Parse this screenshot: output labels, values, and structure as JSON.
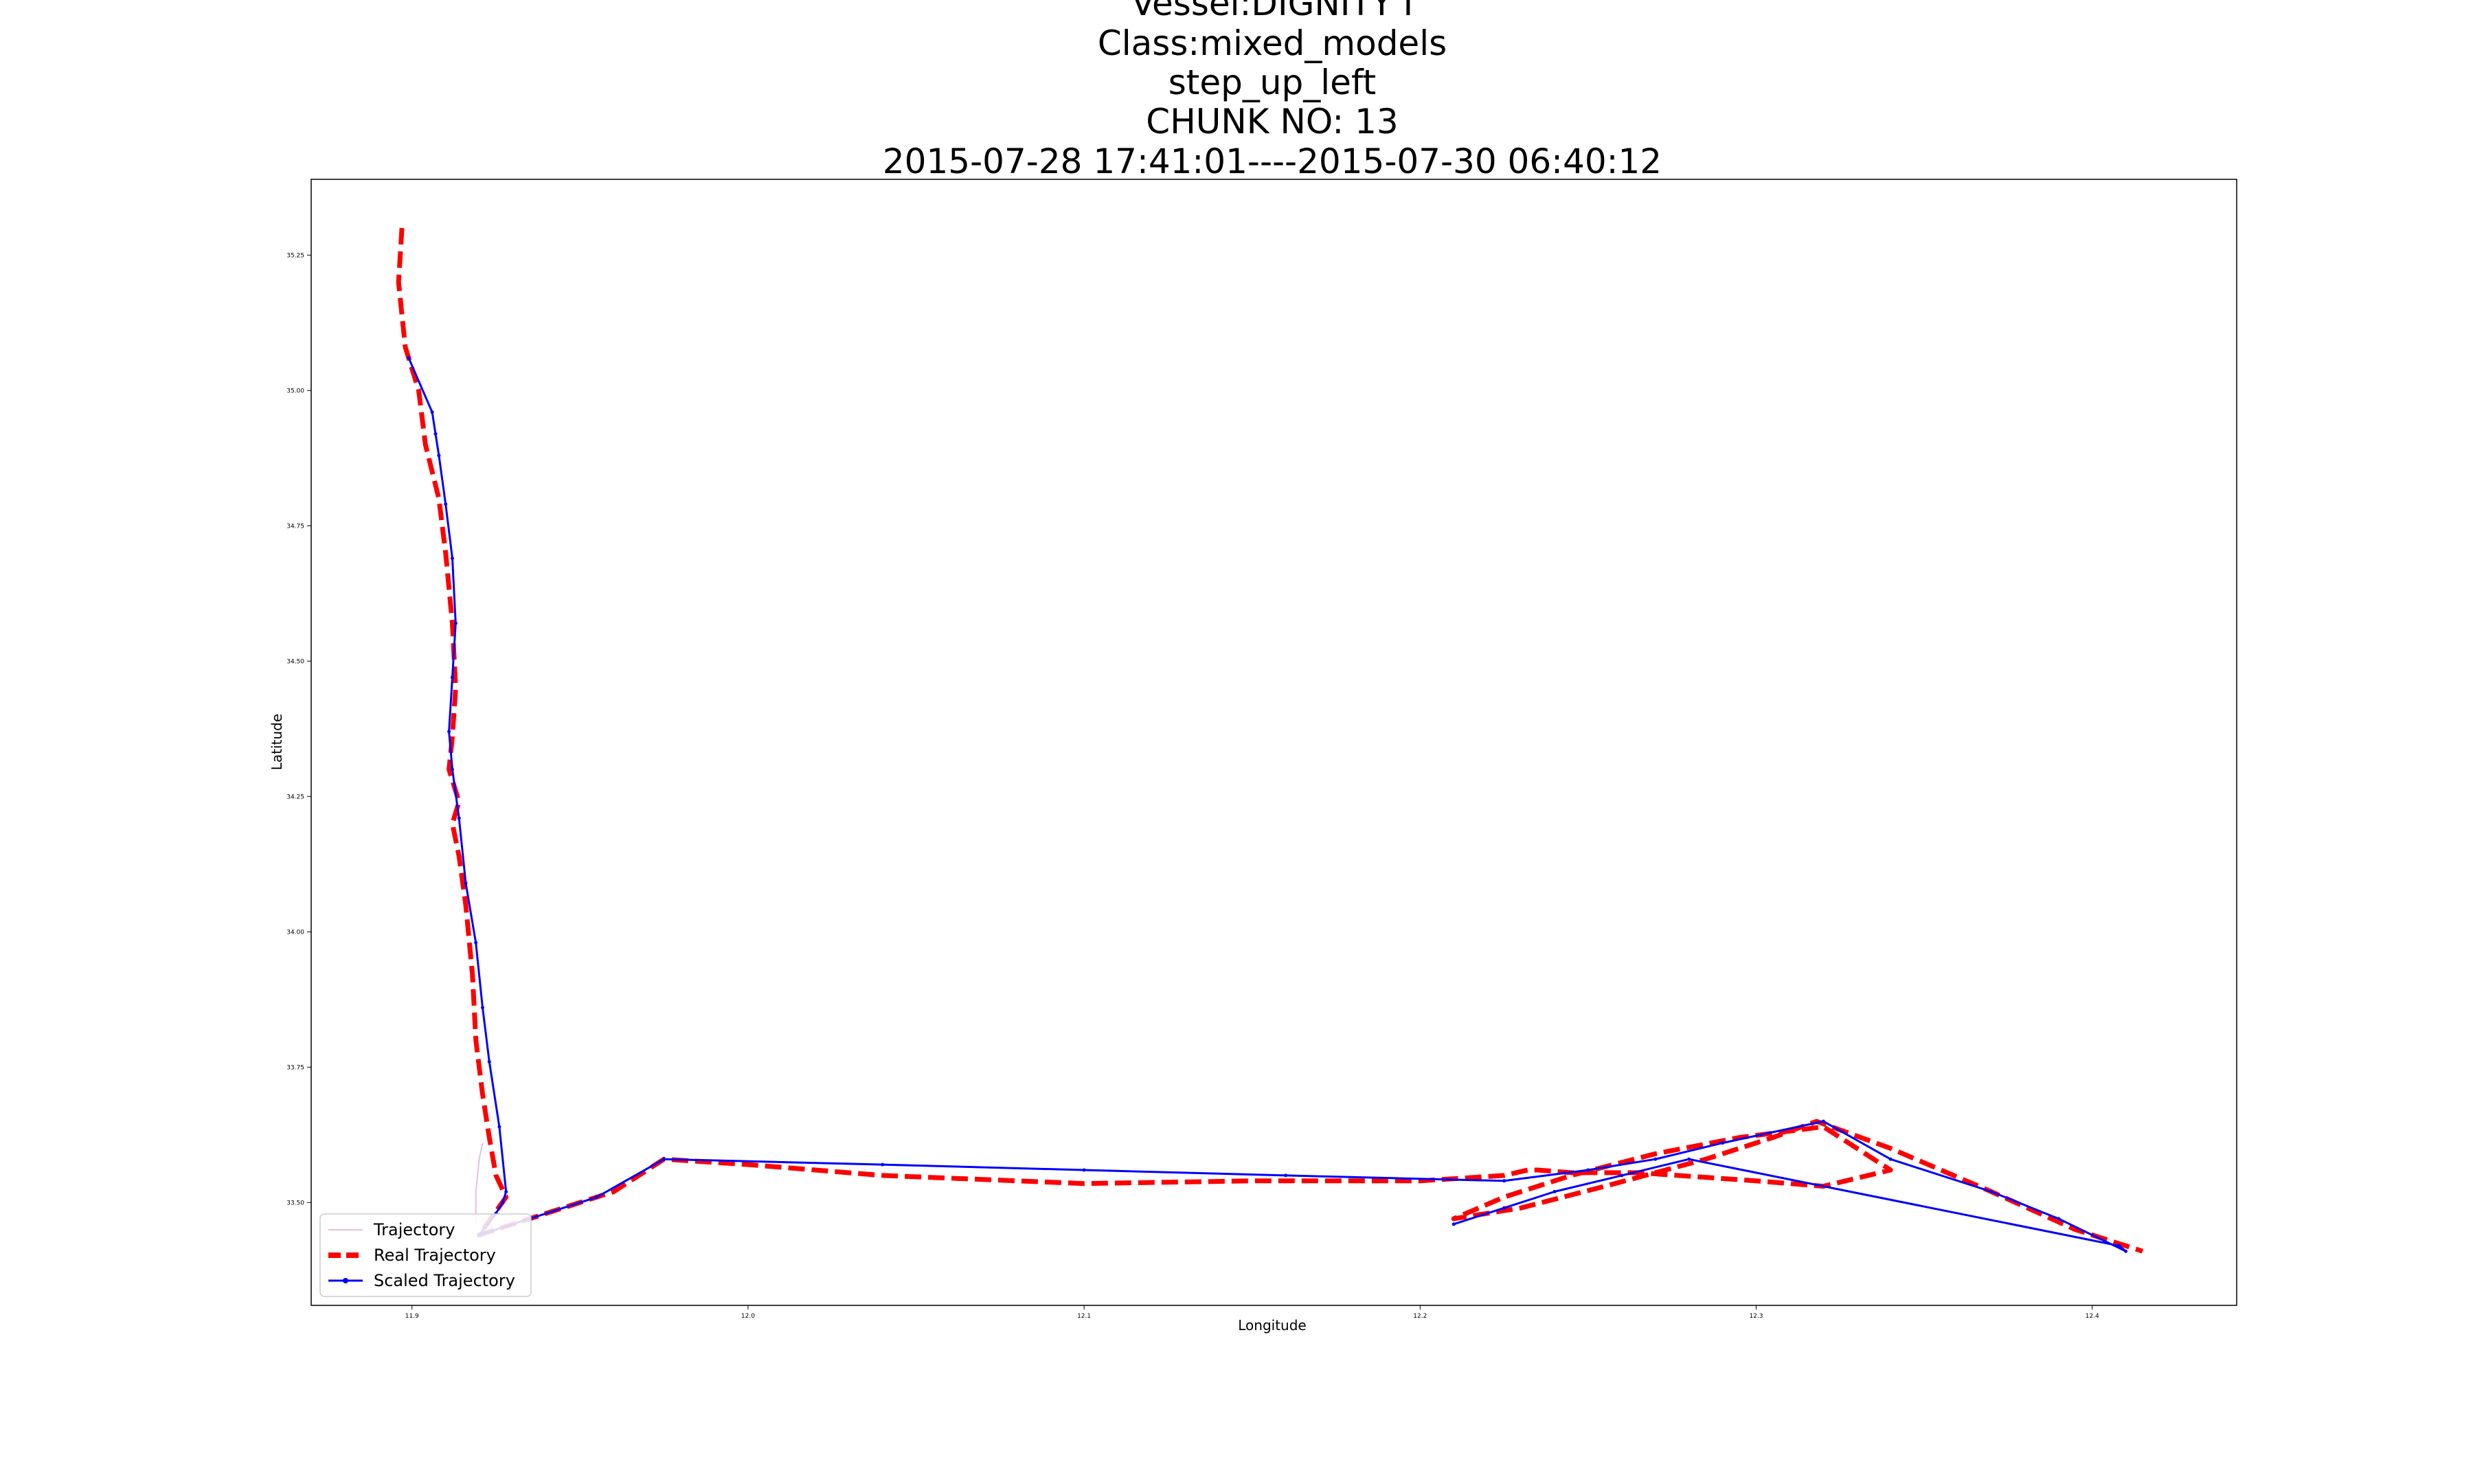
{
  "chart_data": {
    "type": "line",
    "title_lines": [
      "Vessel:DIGNITY I",
      "Class:mixed_models",
      "step_up_left",
      "CHUNK NO: 13",
      "2015-07-28 17:41:01----2015-07-30 06:40:12"
    ],
    "xlabel": "Longitude",
    "ylabel": "Latitude",
    "xlim": [
      11.87,
      12.443
    ],
    "ylim": [
      33.31,
      35.39
    ],
    "xticks": [
      11.9,
      12.0,
      12.1,
      12.2,
      12.3,
      12.4
    ],
    "xtick_labels": [
      "11.9",
      "12.0",
      "12.1",
      "12.2",
      "12.3",
      "12.4"
    ],
    "yticks": [
      33.5,
      33.75,
      34.0,
      34.25,
      34.5,
      34.75,
      35.0,
      35.25
    ],
    "ytick_labels": [
      "33.50",
      "33.75",
      "34.00",
      "34.25",
      "34.50",
      "34.75",
      "35.00",
      "35.25"
    ],
    "grid": false,
    "legend_position": "bottom-left",
    "legend": [
      "Trajectory",
      "Real Trajectory",
      "Scaled Trajectory"
    ],
    "colors": {
      "real": "#ff0000",
      "scaled": "#0000ff",
      "trajectory": "#e8bfd9"
    },
    "series": [
      {
        "name": "Trajectory",
        "style": "thin",
        "x": [
          11.919,
          11.919,
          11.92,
          11.921
        ],
        "y": [
          33.46,
          33.52,
          33.58,
          33.61
        ]
      },
      {
        "name": "Real Trajectory",
        "style": "dashed",
        "x": [
          11.897,
          11.896,
          11.898,
          11.902,
          11.904,
          11.908,
          11.91,
          11.912,
          11.913,
          11.912,
          11.911,
          11.914,
          11.912,
          11.914,
          11.916,
          11.918,
          11.919,
          11.921,
          11.923,
          11.925,
          11.928,
          11.92,
          11.935,
          11.96,
          11.975,
          12.0,
          12.04,
          12.1,
          12.15,
          12.2,
          12.225,
          12.232,
          12.235,
          12.245,
          12.265,
          12.3,
          12.32,
          12.34,
          12.32,
          12.295,
          12.27,
          12.245,
          12.225,
          12.21,
          12.23,
          12.255,
          12.285,
          12.305,
          12.318,
          12.34,
          12.37,
          12.395,
          12.41,
          12.415
        ],
        "y": [
          35.3,
          35.2,
          35.08,
          35.0,
          34.9,
          34.8,
          34.7,
          34.57,
          34.45,
          34.36,
          34.3,
          34.24,
          34.2,
          34.14,
          34.05,
          33.92,
          33.8,
          33.7,
          33.62,
          33.55,
          33.51,
          33.44,
          33.47,
          33.52,
          33.58,
          33.57,
          33.55,
          33.535,
          33.54,
          33.54,
          33.55,
          33.56,
          33.56,
          33.555,
          33.555,
          33.54,
          33.53,
          33.56,
          33.64,
          33.62,
          33.59,
          33.55,
          33.51,
          33.47,
          33.49,
          33.53,
          33.58,
          33.62,
          33.65,
          33.6,
          33.52,
          33.45,
          33.42,
          33.41
        ]
      },
      {
        "name": "Scaled Trajectory",
        "style": "solid",
        "x": [
          11.899,
          11.906,
          11.907,
          11.908,
          11.91,
          11.912,
          11.913,
          11.912,
          11.911,
          11.912,
          11.914,
          11.916,
          11.919,
          11.921,
          11.923,
          11.926,
          11.928,
          11.927,
          11.925,
          11.92,
          11.935,
          11.955,
          11.975,
          12.04,
          12.1,
          12.16,
          12.225,
          12.25,
          12.27,
          12.29,
          12.32,
          12.34,
          12.37,
          12.39,
          12.41,
          12.408,
          12.28,
          12.26,
          12.24,
          12.225,
          12.21
        ],
        "y": [
          35.06,
          34.96,
          34.92,
          34.88,
          34.79,
          34.69,
          34.57,
          34.47,
          34.37,
          34.3,
          34.21,
          34.09,
          33.98,
          33.86,
          33.76,
          33.64,
          33.52,
          33.5,
          33.48,
          33.44,
          33.47,
          33.51,
          33.58,
          33.57,
          33.56,
          33.55,
          33.54,
          33.56,
          33.58,
          33.61,
          33.65,
          33.58,
          33.52,
          33.47,
          33.41,
          33.42,
          33.58,
          33.55,
          33.52,
          33.49,
          33.46
        ]
      }
    ]
  }
}
